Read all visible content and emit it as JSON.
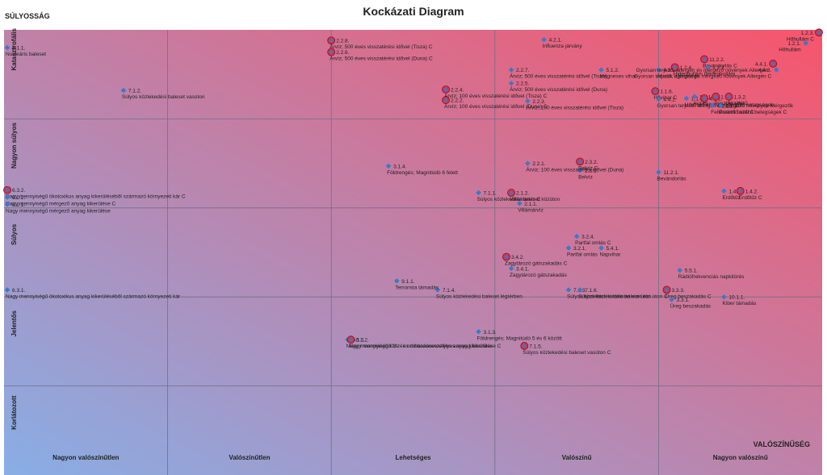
{
  "chart_data": {
    "type": "scatter",
    "title": "Kockázati Diagram",
    "ylabel": "SÚLYOSSÁG",
    "xlabel": "VALÓSZÍNŰSÉG",
    "x_categories": [
      "Nagyon valószínűtlen",
      "Valószínűtlen",
      "Lehetséges",
      "Valószínű",
      "Nagyon valószínű"
    ],
    "y_categories": [
      "Korlátozott",
      "Jelentős",
      "Súlyos",
      "Nagyon súlyos",
      "Katasztrofális"
    ],
    "xlim": [
      0,
      5
    ],
    "ylim": [
      0,
      5
    ],
    "grid": true,
    "colors": {
      "plot_low": "#88aee6",
      "plot_high": "#f7556b",
      "marker": "#3a78c8",
      "marker_c": "#d8324a",
      "grid": "#6f6f86"
    },
    "points": [
      {
        "code": "8.1.1.",
        "label": "Nukleáris baleset",
        "x": 0.02,
        "y": 4.8,
        "style": "d"
      },
      {
        "code": "7.1.2.",
        "label": "Súlyos közlekedési baleset vasúton",
        "x": 0.73,
        "y": 4.32,
        "style": "d"
      },
      {
        "code": "2.2.8.",
        "label": "Árvíz; 500 éves visszatérési idővel (Tisza) C",
        "x": 2.0,
        "y": 4.88,
        "style": "c"
      },
      {
        "code": "2.2.6.",
        "label": "Árvíz; 500 éves visszatérési idővel (Duna) C",
        "x": 2.0,
        "y": 4.75,
        "style": "c"
      },
      {
        "code": "2.2.4.",
        "label": "Árvíz; 100 éves visszatérési idővel (Tisza) C",
        "x": 2.7,
        "y": 4.33,
        "style": "c"
      },
      {
        "code": "2.2.2.",
        "label": "Árvíz; 100 éves visszatérési idővel (Duna) C",
        "x": 2.7,
        "y": 4.21,
        "style": "c"
      },
      {
        "code": "4.2.1.",
        "label": "Influenza járvány",
        "x": 3.3,
        "y": 4.89,
        "style": "d"
      },
      {
        "code": "2.2.7.",
        "label": "Árvíz; 500 éves visszatérési idővel (Tisza)",
        "x": 3.1,
        "y": 4.55,
        "style": "d"
      },
      {
        "code": "2.2.5.",
        "label": "Árvíz; 500 éves visszatérési idővel (Duna)",
        "x": 3.1,
        "y": 4.4,
        "style": "d"
      },
      {
        "code": "2.2.3.",
        "label": "Árvíz; 100 éves visszatérési idővel (Tisza)",
        "x": 3.2,
        "y": 4.2,
        "style": "d"
      },
      {
        "code": "5.1.2.",
        "label": "Mágneses vihar",
        "x": 3.65,
        "y": 4.55,
        "style": "d"
      },
      {
        "code": "4.3.1.",
        "label": "Állatok egészsége",
        "x": 4.0,
        "y": 4.55,
        "style": "d"
      },
      {
        "code": "1.2.4.",
        "label": "Hideghullám C",
        "x": 4.1,
        "y": 4.58,
        "style": "c"
      },
      {
        "code": "11.2.2.",
        "label": "Bevándorlás C",
        "x": 4.28,
        "y": 4.67,
        "style": "c"
      },
      {
        "code": "1.2.2.",
        "label": "Hideghullám",
        "x": 4.3,
        "y": 4.58,
        "style": "d"
      },
      {
        "code": "1.1.6.",
        "label": "Hővihar C",
        "x": 3.98,
        "y": 4.31,
        "style": "c"
      },
      {
        "code": "4.4.2.",
        "label": "Gyorsan terjedő, allergén és mérgező növények Mérgezők",
        "x": 4.0,
        "y": 4.22,
        "style": "d"
      },
      {
        "code": "1.1.3.",
        "label": "Hővihar",
        "x": 4.17,
        "y": 4.23,
        "style": "d"
      },
      {
        "code": "1.3.1.",
        "label": "Aszály",
        "x": 4.22,
        "y": 4.25,
        "style": "d"
      },
      {
        "code": "4.1.1.",
        "label": "Feltörekvő fertőző betegségek",
        "x": 4.28,
        "y": 4.23,
        "style": "c"
      },
      {
        "code": "1.1.1.",
        "label": "Pusztító szél",
        "x": 4.35,
        "y": 4.25,
        "style": "c"
      },
      {
        "code": "1.3.2.",
        "label": "Aszály C",
        "x": 4.43,
        "y": 4.25,
        "style": "c"
      },
      {
        "code": "4.1.2.",
        "label": "Feltörekvő fertőző betegségek C",
        "x": 4.33,
        "y": 4.15,
        "style": "d"
      },
      {
        "code": "1.1.4.",
        "label": "Pusztító szél C",
        "x": 4.38,
        "y": 4.15,
        "style": "d"
      },
      {
        "code": "1.2.3.",
        "label": "Hőhullám C",
        "x": 4.99,
        "y": 4.97,
        "style": "c"
      },
      {
        "code": "1.2.1.",
        "label": "Hőhullám",
        "x": 4.9,
        "y": 4.85,
        "style": "d"
      },
      {
        "code": "4.4.1.",
        "label": "Gyorsan terjedő, allergén és mérgező növények Allergén",
        "x": 4.7,
        "y": 4.62,
        "style": "c"
      },
      {
        "code": "4.4.3.",
        "label": "Gyorsan terjedő, allergén és mérgező növények Allergén C",
        "x": 4.72,
        "y": 4.55,
        "style": "d"
      },
      {
        "code": "2.3.2.",
        "label": "Belvíz C",
        "x": 3.52,
        "y": 3.52,
        "style": "c"
      },
      {
        "code": "2.3.1.",
        "label": "Belvíz",
        "x": 3.52,
        "y": 3.42,
        "style": "d"
      },
      {
        "code": "2.2.1.",
        "label": "Árvíz; 100 éves visszatérési idővel (Duna)",
        "x": 3.2,
        "y": 3.5,
        "style": "d"
      },
      {
        "code": "3.1.4.",
        "label": "Földrengés; Magnitúdó 6 felett",
        "x": 2.35,
        "y": 3.47,
        "style": "d"
      },
      {
        "code": "2.1.2.",
        "label": "Villámárvíz C",
        "x": 3.1,
        "y": 3.17,
        "style": "c"
      },
      {
        "code": "2.1.1.",
        "label": "Villámárvíz",
        "x": 3.15,
        "y": 3.05,
        "style": "d"
      },
      {
        "code": "7.1.1.",
        "label": "Súlyos közlekedési baleset közúton",
        "x": 2.9,
        "y": 3.17,
        "style": "d"
      },
      {
        "code": "11.2.1.",
        "label": "Bevándorlás",
        "x": 4.0,
        "y": 3.4,
        "style": "d"
      },
      {
        "code": "1.4.1.",
        "label": "Erdőtűz",
        "x": 4.4,
        "y": 3.19,
        "style": "d"
      },
      {
        "code": "1.4.2.",
        "label": "Erdőtűz C",
        "x": 4.5,
        "y": 3.19,
        "style": "c"
      },
      {
        "code": "6.3.2.",
        "label": "Nagy mennyiségű ökotoxikus anyag kikerüléséből származó környezeti kár C",
        "x": 0.02,
        "y": 3.2,
        "style": "c"
      },
      {
        "code": "6.2.2.",
        "label": "Nagy mennyiségű mérgező anyag kikerülése C",
        "x": 0.02,
        "y": 3.12,
        "style": "d"
      },
      {
        "code": "6.2.1.",
        "label": "Nagy mennyiségű mérgező anyag kikerülése",
        "x": 0.02,
        "y": 3.04,
        "style": "d"
      },
      {
        "code": "3.2.4.",
        "label": "Partfal omlás C",
        "x": 3.5,
        "y": 2.68,
        "style": "d"
      },
      {
        "code": "3.2.1.",
        "label": "Partfal omlás",
        "x": 3.45,
        "y": 2.55,
        "style": "d"
      },
      {
        "code": "5.4.1.",
        "label": "Napvihar",
        "x": 3.65,
        "y": 2.55,
        "style": "d"
      },
      {
        "code": "3.4.2.",
        "label": "Zagytározó gátszakadás C",
        "x": 3.07,
        "y": 2.45,
        "style": "c"
      },
      {
        "code": "3.4.1.",
        "label": "Zagytározó gátszakadás",
        "x": 3.1,
        "y": 2.32,
        "style": "d"
      },
      {
        "code": "5.5.1.",
        "label": "Rádiófrekvenciás napkitörés",
        "x": 4.13,
        "y": 2.3,
        "style": "d"
      },
      {
        "code": "3.3.3.",
        "label": "Üreg beszakadás C",
        "x": 4.05,
        "y": 2.08,
        "style": "c"
      },
      {
        "code": "3.3.1.",
        "label": "Üreg beszakadás",
        "x": 4.08,
        "y": 1.97,
        "style": "d"
      },
      {
        "code": "10.1.1.",
        "label": "Kiber támadás",
        "x": 4.4,
        "y": 2.0,
        "style": "d"
      },
      {
        "code": "7.1.3.",
        "label": "Súlyos közlekedési baleset vízi úton",
        "x": 3.45,
        "y": 2.08,
        "style": "d"
      },
      {
        "code": "7.1.6.",
        "label": "Súlyos közlekedési baleset vízi úton C",
        "x": 3.52,
        "y": 2.08,
        "style": "d"
      },
      {
        "code": "7.1.4.",
        "label": "Súlyos közlekedési baleset légtérben",
        "x": 2.65,
        "y": 2.08,
        "style": "d"
      },
      {
        "code": "9.1.1.",
        "label": "Terrorista támadás",
        "x": 2.4,
        "y": 2.18,
        "style": "d"
      },
      {
        "code": "6.3.1.",
        "label": "Nagy mennyiségű ökotoxikus anyag kikerüléséből származó környezeti kár",
        "x": 0.02,
        "y": 2.08,
        "style": "d"
      },
      {
        "code": "3.1.3.",
        "label": "Földrengés; Magnitúdó 5 és 6 között",
        "x": 2.9,
        "y": 1.61,
        "style": "d"
      },
      {
        "code": "7.1.5.",
        "label": "Súlyos közlekedési baleset vasúton C",
        "x": 3.18,
        "y": 1.45,
        "style": "c"
      },
      {
        "code": "6.1.1.",
        "label": "Nagy mennyiségű tűz- és robbanásveszélyes anyag kikerülése",
        "x": 2.1,
        "y": 1.52,
        "style": "d"
      },
      {
        "code": "6.1.2.",
        "label": "Nagy mennyiségű tűz- és robbanásveszélyes anyag kikerülése C",
        "x": 2.12,
        "y": 1.52,
        "style": "c"
      }
    ]
  }
}
